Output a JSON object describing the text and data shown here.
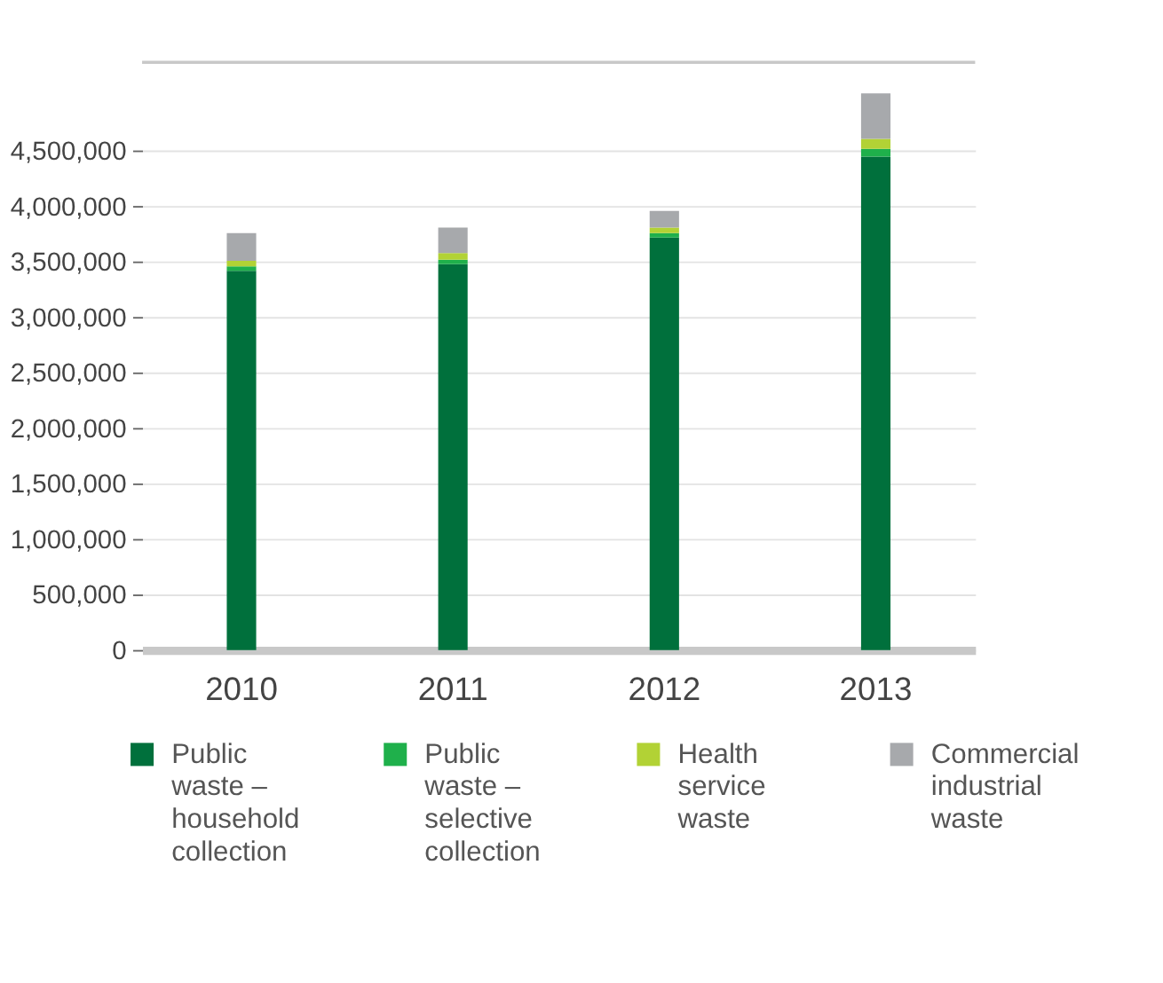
{
  "chart_data": {
    "type": "bar",
    "stacked": true,
    "categories": [
      "2010",
      "2011",
      "2012",
      "2013"
    ],
    "series": [
      {
        "name": "Public waste – household collection",
        "color": "#00703c",
        "values": [
          3420000,
          3480000,
          3720000,
          4450000
        ]
      },
      {
        "name": "Public waste – selective collection",
        "color": "#1fb04b",
        "values": [
          40000,
          40000,
          40000,
          70000
        ]
      },
      {
        "name": "Health service waste",
        "color": "#b2d235",
        "values": [
          50000,
          60000,
          50000,
          90000
        ]
      },
      {
        "name": "Commercial industrial waste",
        "color": "#a7a9ac",
        "values": [
          250000,
          230000,
          150000,
          410000
        ]
      }
    ],
    "ylim": [
      0,
      5300000
    ],
    "yticks": [
      {
        "value": 0,
        "label": "0"
      },
      {
        "value": 500000,
        "label": "500,000"
      },
      {
        "value": 1000000,
        "label": "1,000,000"
      },
      {
        "value": 1500000,
        "label": "1,500,000"
      },
      {
        "value": 2000000,
        "label": "2,000,000"
      },
      {
        "value": 2500000,
        "label": "2,500,000"
      },
      {
        "value": 3000000,
        "label": "3,000,000"
      },
      {
        "value": 3500000,
        "label": "3,500,000"
      },
      {
        "value": 4000000,
        "label": "4,000,000"
      },
      {
        "value": 4500000,
        "label": "4,500,000"
      }
    ],
    "grid": "y",
    "legend": "bottom"
  }
}
